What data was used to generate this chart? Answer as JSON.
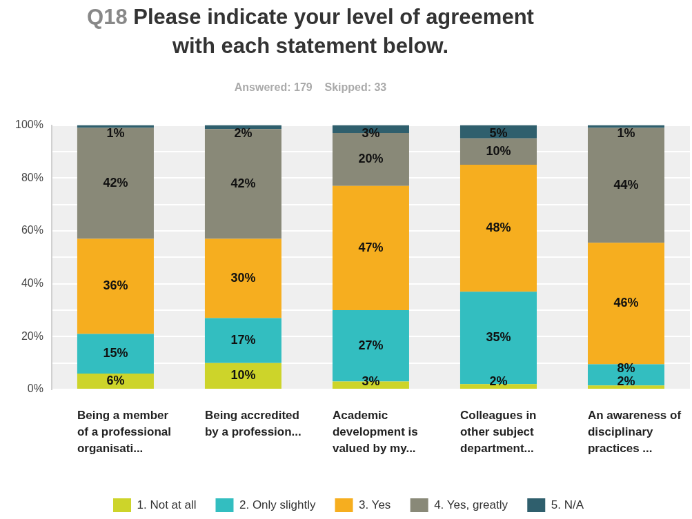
{
  "chart_data": {
    "type": "bar",
    "stacked": true,
    "title": "Q18 Please indicate your level of agreement with each statement below.",
    "subtitle": "Answered: 179    Skipped: 33",
    "categories": [
      "Being a member of a professional organisati...",
      "Being accredited by a profession...",
      "Academic development is valued by my...",
      "Colleagues in other subject department...",
      "An awareness of disciplinary practices ..."
    ],
    "series": [
      {
        "name": "1. Not at all",
        "color": "#cdd42a",
        "values": [
          6,
          10,
          3,
          2,
          1.5
        ],
        "value_labels": [
          "6%",
          "10%",
          "3%",
          "2%",
          "2%"
        ]
      },
      {
        "name": "2. Only slightly",
        "color": "#33bec0",
        "values": [
          15,
          17,
          27,
          35,
          8
        ],
        "value_labels": [
          "15%",
          "17%",
          "27%",
          "35%",
          "8%"
        ]
      },
      {
        "name": "3. Yes",
        "color": "#f6ae1f",
        "values": [
          36,
          30,
          47,
          48,
          46
        ],
        "value_labels": [
          "36%",
          "30%",
          "47%",
          "48%",
          "46%"
        ]
      },
      {
        "name": "4. Yes, greatly",
        "color": "#898978",
        "values": [
          42,
          41.5,
          20,
          10,
          43.5
        ],
        "value_labels": [
          "42%",
          "42%",
          "20%",
          "10%",
          "44%"
        ]
      },
      {
        "name": "5. N/A",
        "color": "#2f5f6d",
        "values": [
          1,
          1.5,
          3,
          5,
          1
        ],
        "value_labels": [
          "1%",
          "2%",
          "3%",
          "5%",
          "1%"
        ]
      }
    ],
    "ylim": [
      0,
      100
    ],
    "yticks": [
      {
        "value": 0,
        "label": "0%"
      },
      {
        "value": 10,
        "label": null
      },
      {
        "value": 20,
        "label": "20%"
      },
      {
        "value": 30,
        "label": null
      },
      {
        "value": 40,
        "label": "40%"
      },
      {
        "value": 50,
        "label": null
      },
      {
        "value": 60,
        "label": "60%"
      },
      {
        "value": 70,
        "label": null
      },
      {
        "value": 80,
        "label": "80%"
      },
      {
        "value": 90,
        "label": null
      },
      {
        "value": 100,
        "label": "100%"
      }
    ],
    "grid": "y",
    "legend": "bottom"
  }
}
